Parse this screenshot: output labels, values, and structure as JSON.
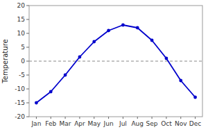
{
  "chart_data": {
    "type": "line",
    "y_label": "Temperature",
    "categories": [
      "Jan",
      "Feb",
      "Mar",
      "Apr",
      "May",
      "Jun",
      "Jul",
      "Aug",
      "Sep",
      "Oct",
      "Nov",
      "Dec"
    ],
    "values": [
      -15,
      -11,
      -5,
      1.5,
      7,
      11,
      13,
      12,
      7.5,
      1,
      -7,
      -13
    ],
    "color": "#0000cc",
    "marker": "circle",
    "ylim": [
      -20,
      20
    ],
    "yticks": [
      -20,
      -15,
      -10,
      -5,
      0,
      5,
      10,
      15,
      20
    ],
    "reference_line": {
      "value": 0,
      "color": "#888888",
      "line_style": "dashed"
    },
    "grid": false
  }
}
